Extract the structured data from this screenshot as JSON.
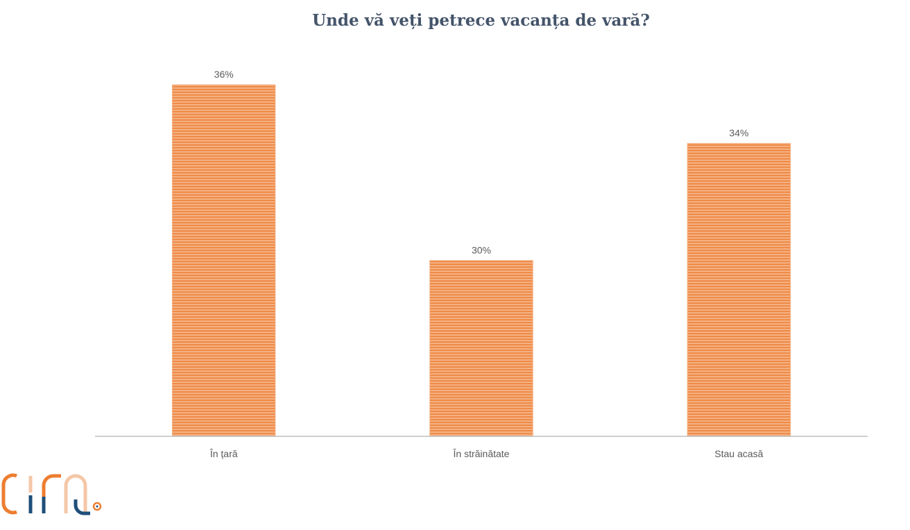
{
  "chart_data": {
    "type": "bar",
    "title": "Unde vă veți petrece vacanța de vară?",
    "categories": [
      "În țară",
      "În străinătate",
      "Stau acasă"
    ],
    "values": [
      36,
      30,
      34
    ],
    "value_labels": [
      "36%",
      "30%",
      "34%"
    ],
    "unit": "%",
    "ylim": [
      24,
      37
    ],
    "grid": false,
    "legend": "none",
    "xlabel": "",
    "ylabel": ""
  },
  "colors": {
    "bar_fill": "#f4b183",
    "bar_stripe": "#ed7d31",
    "axis": "#bfbfbf",
    "title": "#44546a"
  },
  "logo": {
    "text": "cira",
    "colors": [
      "#ed7d31",
      "#1f4e79",
      "#f4c7a7"
    ]
  }
}
